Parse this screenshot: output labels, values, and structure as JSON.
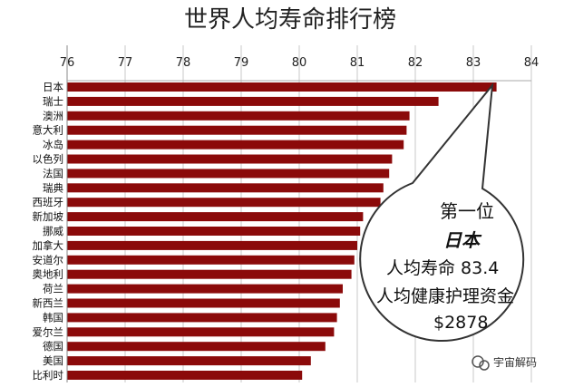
{
  "chart_data": {
    "type": "bar",
    "orientation": "horizontal",
    "title": "世界人均寿命排行榜",
    "xlabel": "",
    "ylabel": "",
    "xlim": [
      76,
      84
    ],
    "ticks": [
      "76",
      "77",
      "78",
      "79",
      "80",
      "81",
      "82",
      "83",
      "84"
    ],
    "grid": true,
    "bar_color": "#8b0a0a",
    "categories": [
      "日本",
      "瑞士",
      "澳洲",
      "意大利",
      "冰岛",
      "以色列",
      "法国",
      "瑞典",
      "西班牙",
      "新加坡",
      "挪威",
      "加拿大",
      "安道尔",
      "奥地利",
      "荷兰",
      "新西兰",
      "韩国",
      "爱尔兰",
      "德国",
      "美国",
      "比利时"
    ],
    "values": [
      83.4,
      82.4,
      81.9,
      81.85,
      81.8,
      81.6,
      81.55,
      81.45,
      81.4,
      81.1,
      81.05,
      81.0,
      80.95,
      80.9,
      80.75,
      80.7,
      80.65,
      80.6,
      80.45,
      80.2,
      80.05
    ]
  },
  "callout": {
    "line1": "第一位",
    "line2": "日本",
    "line3": "人均寿命 83.4",
    "line4": "人均健康护理资金",
    "line5": "$2878"
  },
  "watermark": {
    "icon": "wechat-icon",
    "text": "宇宙解码"
  }
}
